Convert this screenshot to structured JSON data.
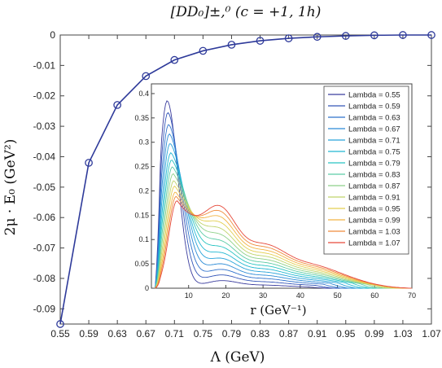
{
  "figure": {
    "title": "[DD₀]±,⁰ (c = +1, 1h)",
    "xlabel": "Λ (GeV)",
    "ylabel": "2μ · E₀ (GeV²)",
    "inset_xlabel": "r (GeV⁻¹)"
  },
  "colors": {
    "main_line": "#2e3a9a",
    "marker_edge": "#2e3a9a",
    "inset_series": [
      "#3b3d9e",
      "#3456b8",
      "#2f72cc",
      "#2b8bd6",
      "#27a3d9",
      "#22b7d2",
      "#28c4c2",
      "#5ccca6",
      "#8ed189",
      "#bfd46b",
      "#e3cf52",
      "#f2b545",
      "#ef8c3c",
      "#e6493a"
    ]
  },
  "chart_data": [
    {
      "type": "line",
      "title": "[DD₀]±,⁰ (c = +1, 1h)",
      "xlabel": "Λ (GeV)",
      "ylabel": "2μ · E₀ (GeV²)",
      "x": [
        0.55,
        0.59,
        0.63,
        0.67,
        0.71,
        0.75,
        0.79,
        0.83,
        0.87,
        0.91,
        0.95,
        0.99,
        1.03,
        1.07
      ],
      "y": [
        -0.095,
        -0.042,
        -0.023,
        -0.0135,
        -0.0082,
        -0.0052,
        -0.0032,
        -0.0019,
        -0.0011,
        -0.0006,
        -0.0003,
        -0.0001,
        0.0,
        0.0
      ],
      "xticks": [
        "0.55",
        "0.59",
        "0.63",
        "0.67",
        "0.71",
        "0.75",
        "0.79",
        "0.83",
        "0.87",
        "0.91",
        "0.95",
        "0.99",
        "1.03",
        "1.07"
      ],
      "yticks": [
        "0",
        "-0.01",
        "-0.02",
        "-0.03",
        "-0.04",
        "-0.05",
        "-0.06",
        "-0.07",
        "-0.08",
        "-0.09"
      ],
      "xlim": [
        0.55,
        1.07
      ],
      "ylim": [
        -0.095,
        0.0
      ],
      "markers": "circle",
      "grid": false
    },
    {
      "type": "line",
      "xlabel": "r (GeV⁻¹)",
      "xlim": [
        0,
        70
      ],
      "ylim": [
        0,
        0.42
      ],
      "xticks": [
        "10",
        "20",
        "30",
        "40",
        "50",
        "60",
        "70"
      ],
      "yticks": [
        "0",
        "0.05",
        "0.1",
        "0.15",
        "0.2",
        "0.25",
        "0.3",
        "0.35",
        "0.4"
      ],
      "legend_position": "top-right",
      "grid": false,
      "series": [
        {
          "name": "Lambda = 0.55",
          "peak_r": 4.3,
          "peak": 0.41
        },
        {
          "name": "Lambda = 0.59",
          "peak_r": 4.5,
          "peak": 0.385
        },
        {
          "name": "Lambda = 0.63",
          "peak_r": 4.7,
          "peak": 0.36
        },
        {
          "name": "Lambda = 0.67",
          "peak_r": 4.9,
          "peak": 0.34
        },
        {
          "name": "Lambda = 0.71",
          "peak_r": 5.1,
          "peak": 0.32
        },
        {
          "name": "Lambda = 0.75",
          "peak_r": 5.3,
          "peak": 0.3
        },
        {
          "name": "Lambda = 0.79",
          "peak_r": 5.5,
          "peak": 0.285
        },
        {
          "name": "Lambda = 0.83",
          "peak_r": 5.7,
          "peak": 0.27
        },
        {
          "name": "Lambda = 0.87",
          "peak_r": 5.9,
          "peak": 0.255
        },
        {
          "name": "Lambda = 0.91",
          "peak_r": 6.1,
          "peak": 0.24
        },
        {
          "name": "Lambda = 0.95",
          "peak_r": 6.3,
          "peak": 0.228
        },
        {
          "name": "Lambda = 0.99",
          "peak_r": 6.5,
          "peak": 0.215
        },
        {
          "name": "Lambda = 1.03",
          "peak_r": 6.7,
          "peak": 0.205
        },
        {
          "name": "Lambda = 1.07",
          "peak_r": 6.9,
          "peak": 0.195
        }
      ]
    }
  ]
}
